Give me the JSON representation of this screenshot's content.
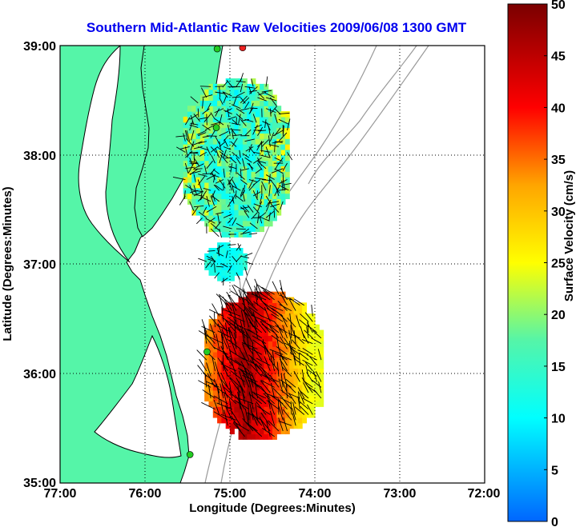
{
  "chart_data": {
    "type": "heatmap",
    "title": "Southern Mid-Atlantic Raw Velocities 2009/06/08 1300 GMT",
    "xlabel": "Longitude (Degrees:Minutes)",
    "ylabel": "Latitude (Degrees:Minutes)",
    "xlim": [
      -77,
      -72
    ],
    "ylim": [
      35,
      39
    ],
    "x_ticks": [
      {
        "value": -77,
        "label": "77:00"
      },
      {
        "value": -76,
        "label": "76:00"
      },
      {
        "value": -75,
        "label": "75:00"
      },
      {
        "value": -74,
        "label": "74:00"
      },
      {
        "value": -73,
        "label": "73:00"
      },
      {
        "value": -72,
        "label": "72:00"
      }
    ],
    "y_ticks": [
      {
        "value": 39,
        "label": "39:00"
      },
      {
        "value": 38,
        "label": "38:00"
      },
      {
        "value": 37,
        "label": "37:00"
      },
      {
        "value": 36,
        "label": "36:00"
      },
      {
        "value": 35,
        "label": "35:00"
      }
    ],
    "grid": true,
    "colorbar": {
      "label": "Surface Velocity (cm/s)",
      "range": [
        0,
        50
      ],
      "ticks": [
        0,
        5,
        10,
        15,
        20,
        25,
        30,
        35,
        40,
        45,
        50
      ],
      "placement": "right"
    },
    "regions": [
      {
        "name_hint": "delmarva",
        "lon_range": [
          -75.55,
          -74.35
        ],
        "lat_range": [
          37.25,
          38.65
        ],
        "speed_range": [
          5,
          28
        ]
      },
      {
        "name_hint": "chesapeake-mouth",
        "lon_range": [
          -75.3,
          -74.85
        ],
        "lat_range": [
          36.85,
          37.15
        ],
        "speed_range": [
          8,
          15
        ]
      },
      {
        "name_hint": "outer-banks",
        "lon_range": [
          -75.3,
          -73.95
        ],
        "lat_range": [
          35.4,
          36.7
        ],
        "speed_range": [
          12,
          50
        ]
      }
    ],
    "stations": [
      {
        "lon": -75.15,
        "lat": 38.97
      },
      {
        "lon": -74.85,
        "lat": 38.98
      },
      {
        "lon": -75.16,
        "lat": 38.25
      },
      {
        "lon": -75.27,
        "lat": 36.2
      },
      {
        "lon": -75.47,
        "lat": 35.26
      }
    ],
    "colors": {
      "land": "#55f5a8",
      "coastline": "#000000",
      "bathymetry": "#999999",
      "station": "#22cc22",
      "station_hot": "#ee2222",
      "title": "#0000ee"
    }
  }
}
